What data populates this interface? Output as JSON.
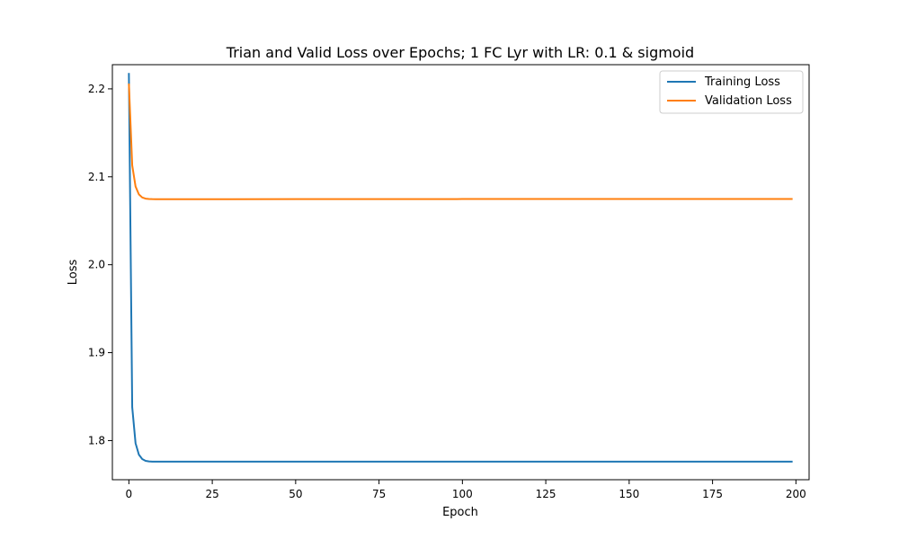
{
  "chart_data": {
    "type": "line",
    "title": "Trian and Valid Loss over Epochs; 1 FC Lyr with LR: 0.1 & sigmoid",
    "xlabel": "Epoch",
    "ylabel": "Loss",
    "xlim": [
      -4.95,
      203.95
    ],
    "ylim": [
      1.7555,
      2.2275
    ],
    "xticks": [
      0,
      25,
      50,
      75,
      100,
      125,
      150,
      175,
      200
    ],
    "yticks": [
      1.8,
      1.9,
      2.0,
      2.1,
      2.2
    ],
    "xtick_labels": [
      "0",
      "25",
      "50",
      "75",
      "100",
      "125",
      "150",
      "175",
      "200"
    ],
    "ytick_labels": [
      "1.8",
      "1.9",
      "2.0",
      "2.1",
      "2.2"
    ],
    "grid": false,
    "legend_position": "top-right",
    "series": [
      {
        "name": "Training Loss",
        "color": "#1f77b4",
        "x": [
          0,
          1,
          2,
          3,
          4,
          5,
          6,
          7,
          8,
          10,
          15,
          20,
          50,
          100,
          150,
          199
        ],
        "values": [
          2.218,
          1.838,
          1.797,
          1.784,
          1.779,
          1.777,
          1.7763,
          1.776,
          1.776,
          1.776,
          1.776,
          1.776,
          1.776,
          1.776,
          1.776,
          1.776
        ]
      },
      {
        "name": "Validation Loss",
        "color": "#ff7f0e",
        "x": [
          0,
          1,
          2,
          3,
          4,
          5,
          6,
          7,
          8,
          10,
          15,
          20,
          50,
          100,
          150,
          199
        ],
        "values": [
          2.206,
          2.113,
          2.089,
          2.08,
          2.0765,
          2.0752,
          2.0748,
          2.0746,
          2.0745,
          2.0745,
          2.0745,
          2.0745,
          2.0746,
          2.0747,
          2.0747,
          2.0747
        ]
      }
    ]
  }
}
